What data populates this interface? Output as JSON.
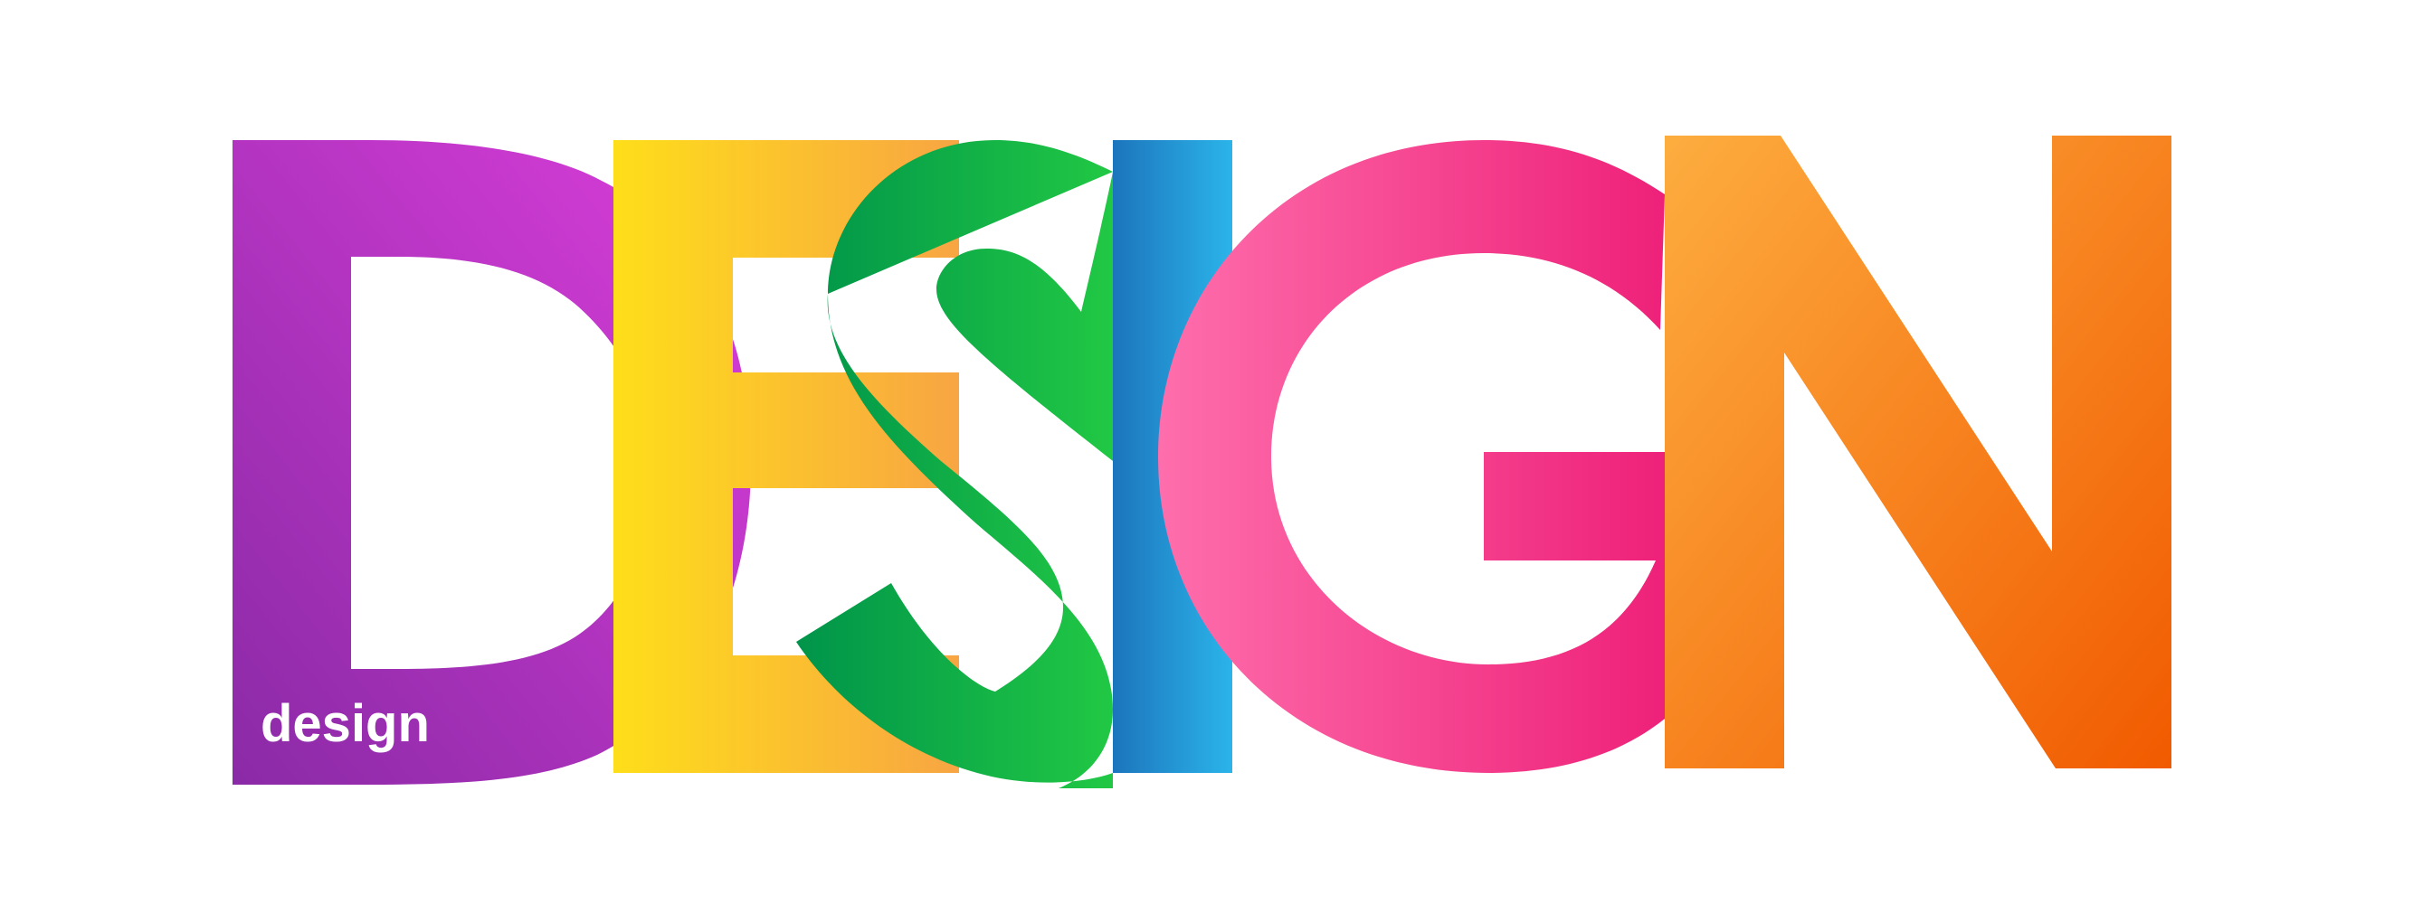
{
  "artwork": {
    "headline": "DESIGN",
    "letters": [
      {
        "char": "D",
        "color_start": "#8a2aa6",
        "color_end": "#dc3edb"
      },
      {
        "char": "E",
        "color_start": "#fede1a",
        "color_end": "#f8a543"
      },
      {
        "char": "S",
        "color_start": "#00944a",
        "color_end": "#21c844"
      },
      {
        "char": "I",
        "color_start": "#1c75bc",
        "color_end": "#2bb4ea"
      },
      {
        "char": "G",
        "color_start": "#fe6eac",
        "color_end": "#ee2179"
      },
      {
        "char": "N",
        "color_start": "#fdad3f",
        "color_end": "#f15a00"
      }
    ],
    "caption": "design",
    "caption_color": "#ffffff",
    "background_color": "#ffffff"
  }
}
